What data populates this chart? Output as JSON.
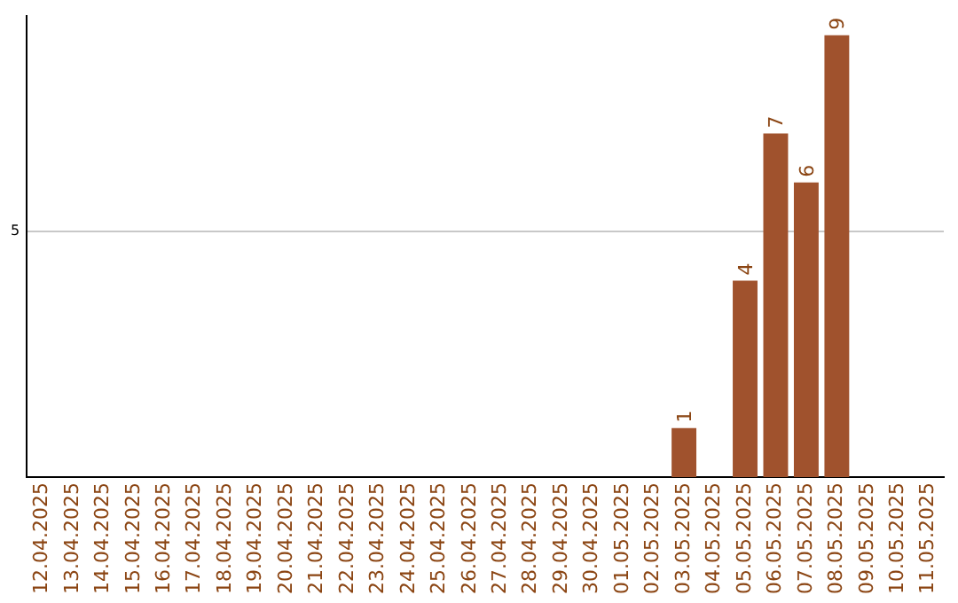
{
  "chart_data": {
    "type": "bar",
    "categories": [
      "12.04.2025",
      "13.04.2025",
      "14.04.2025",
      "15.04.2025",
      "16.04.2025",
      "17.04.2025",
      "18.04.2025",
      "19.04.2025",
      "20.04.2025",
      "21.04.2025",
      "22.04.2025",
      "23.04.2025",
      "24.04.2025",
      "25.04.2025",
      "26.04.2025",
      "27.04.2025",
      "28.04.2025",
      "29.04.2025",
      "30.04.2025",
      "01.05.2025",
      "02.05.2025",
      "03.05.2025",
      "04.05.2025",
      "05.05.2025",
      "06.05.2025",
      "07.05.2025",
      "08.05.2025",
      "09.05.2025",
      "10.05.2025",
      "11.05.2025"
    ],
    "values": [
      null,
      null,
      null,
      null,
      null,
      null,
      null,
      null,
      null,
      null,
      null,
      null,
      null,
      null,
      null,
      null,
      null,
      null,
      null,
      null,
      null,
      1,
      null,
      4,
      7,
      6,
      9,
      null,
      null,
      null
    ],
    "color": "#a0522d",
    "ylim": [
      0,
      9.4
    ],
    "yticks": [
      5
    ],
    "grid": "y",
    "legend": false,
    "data_labels": true
  }
}
